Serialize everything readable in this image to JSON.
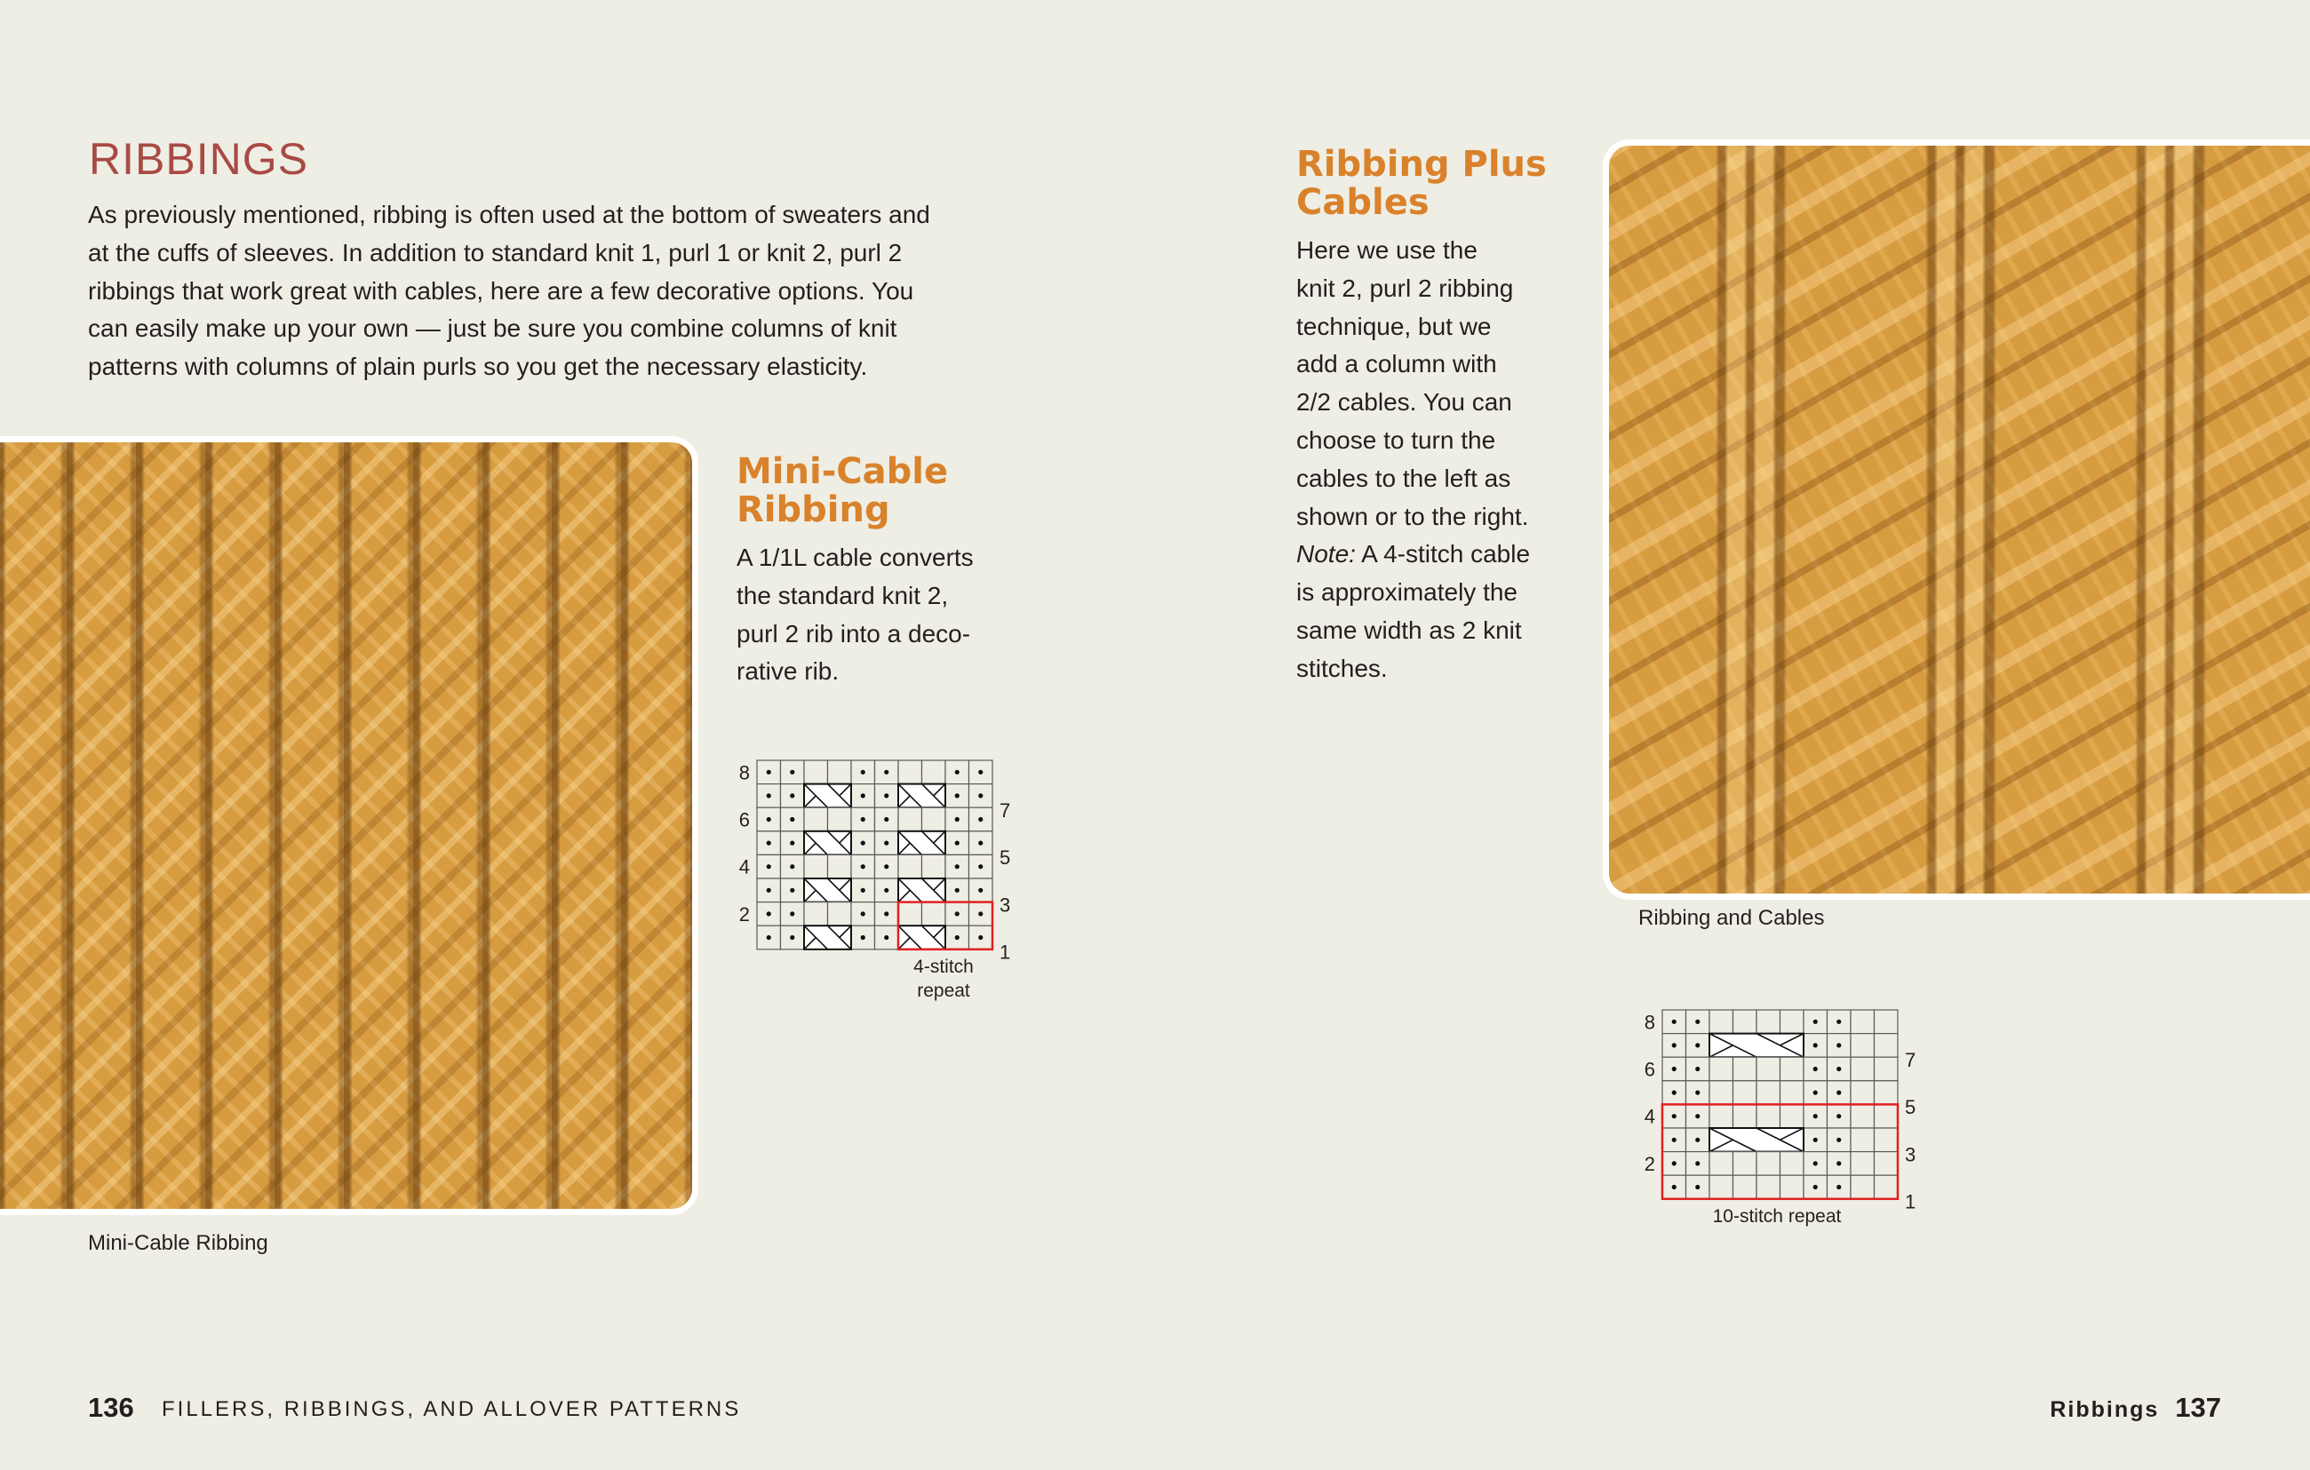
{
  "colors": {
    "background": "#efeee4",
    "heading": "#a84a45",
    "subheading": "#d9822b",
    "text": "#231f20",
    "repeat_box": "#e02020",
    "yarn": "#d89c40"
  },
  "title": "RIBBINGS",
  "intro_lines": [
    "As previously mentioned, ribbing is often used at the bottom of sweaters and",
    "at the cuffs of sleeves. In addition to standard knit 1, purl 1 or knit 2, purl 2",
    "ribbings that work great with cables, here are a few decorative options. You",
    "can easily make up your own — just be sure you combine columns of knit",
    "patterns with columns of plain purls so you get the necessary elasticity."
  ],
  "mini_cable": {
    "heading_lines": [
      "Mini-Cable",
      "Ribbing"
    ],
    "text_lines": [
      "A 1/1L cable converts",
      "the standard knit 2,",
      "purl 2 rib into a deco-",
      "rative rib."
    ],
    "caption": "Mini-Cable Ribbing",
    "repeat_label_lines": [
      "4-stitch",
      "repeat"
    ]
  },
  "ribbing_plus": {
    "heading_lines": [
      "Ribbing Plus",
      "Cables"
    ],
    "text_lines": [
      "Here we use the",
      "knit 2, purl 2 ribbing",
      "technique, but we",
      "add a column with",
      "2/2 cables. You can",
      "choose to turn the",
      "cables to the left as",
      "shown or to the right."
    ],
    "note_label": "Note:",
    "note_lines": [
      " A 4-stitch cable",
      "is approximately the",
      "same width as 2 knit",
      "stitches."
    ],
    "caption": "Ribbing and Cables",
    "repeat_label": "10-stitch repeat"
  },
  "chart_data": [
    {
      "type": "table",
      "name": "mini-cable-chart",
      "legend": {
        "•": "purl",
        ".": "knit",
        "C": "cable 1/1L"
      },
      "rows_top_to_bottom": [
        "••..••..••",
        "••CC••CC••",
        "••..••..••",
        "••CC••CC••",
        "••..••..••",
        "••CC••CC••",
        "••..••..••",
        "••CC••CC••"
      ],
      "row_numbers": [
        8,
        7,
        6,
        5,
        4,
        3,
        2,
        1
      ],
      "repeat": {
        "columns": [
          7,
          10
        ],
        "rows": [
          1,
          2
        ]
      }
    },
    {
      "type": "table",
      "name": "ribbing-cables-chart",
      "legend": {
        "•": "purl",
        ".": "knit",
        "C": "cable 2/2L"
      },
      "rows_top_to_bottom": [
        "••....••..",
        "••CCCC••..",
        "••....••..",
        "••....••..",
        "••....••..",
        "••CCCC••..",
        "••....••..",
        "••....••.."
      ],
      "row_numbers": [
        8,
        7,
        6,
        5,
        4,
        3,
        2,
        1
      ],
      "repeat": {
        "columns": [
          1,
          10
        ],
        "rows": [
          1,
          4
        ]
      }
    }
  ],
  "footer": {
    "left_page": "136",
    "left_title": "FILLERS, RIBBINGS, AND ALLOVER PATTERNS",
    "right_section": "Ribbings",
    "right_page": "137"
  }
}
